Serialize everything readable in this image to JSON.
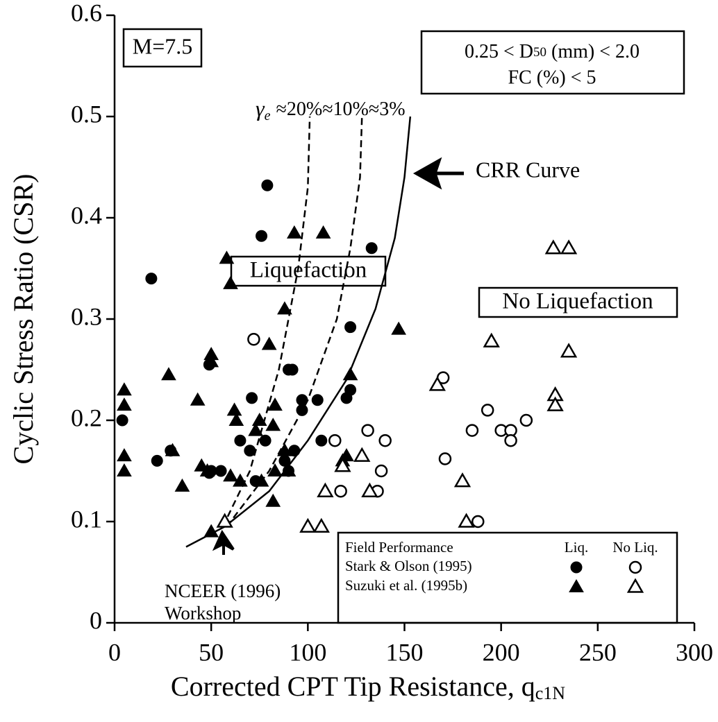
{
  "chart_data": {
    "type": "scatter",
    "xlabel": "Corrected CPT Tip Resistance, q",
    "xlabel_sub": "c1N",
    "ylabel": "Cyclic Stress Ratio (CSR)",
    "xlim": [
      0,
      300
    ],
    "xticks": [
      0,
      50,
      100,
      150,
      200,
      250,
      300
    ],
    "ylim": [
      0,
      0.6
    ],
    "yticks": [
      0,
      0.1,
      0.2,
      0.3,
      0.4,
      0.5,
      0.6
    ],
    "color": "#000000",
    "annotations": {
      "magnitude": "M=7.5",
      "grain_pre": "0.25 < D",
      "grain_sub": "50",
      "grain_post": " (mm) < 2.0",
      "fines": "FC (%) < 5",
      "strain_symbol": "γ",
      "strain_sub": "e",
      "strain_levels": "≈20%≈10%≈3%",
      "crr": "CRR Curve",
      "liq": "Liquefaction",
      "noliq": "No Liquefaction",
      "nceer1": "NCEER (1996)",
      "nceer2": "Workshop"
    },
    "legend": {
      "title": "Field Performance",
      "columns": [
        "Liq.",
        "No Liq."
      ]
    },
    "groups": [
      {
        "name": "Stark & Olson (1995)",
        "marker": "circle",
        "liq": {
          "x": [
            4,
            19,
            22,
            29,
            49,
            50,
            55,
            49,
            65,
            70,
            73,
            71,
            76,
            78,
            79,
            88,
            90,
            92,
            90,
            93,
            97,
            97,
            105,
            107,
            120,
            122,
            122,
            133
          ],
          "y": [
            0.2,
            0.34,
            0.16,
            0.17,
            0.148,
            0.15,
            0.15,
            0.255,
            0.18,
            0.17,
            0.14,
            0.222,
            0.382,
            0.18,
            0.432,
            0.16,
            0.25,
            0.25,
            0.15,
            0.17,
            0.22,
            0.21,
            0.22,
            0.18,
            0.222,
            0.23,
            0.292,
            0.37
          ]
        },
        "no_liq": {
          "x": [
            72,
            114,
            117,
            131,
            136,
            138,
            140,
            170,
            171,
            185,
            188,
            193,
            200,
            205,
            205,
            213
          ],
          "y": [
            0.28,
            0.18,
            0.13,
            0.19,
            0.13,
            0.15,
            0.18,
            0.242,
            0.162,
            0.19,
            0.1,
            0.21,
            0.19,
            0.19,
            0.18,
            0.2
          ]
        }
      },
      {
        "name": "Suzuki et al. (1995b)",
        "marker": "triangle",
        "liq": {
          "x": [
            5,
            5,
            5,
            5,
            28,
            30,
            35,
            43,
            45,
            50,
            50,
            48,
            50,
            58,
            60,
            60,
            62,
            63,
            65,
            73,
            75,
            76,
            80,
            83,
            82,
            82,
            83,
            88,
            88,
            90,
            93,
            108,
            118,
            120,
            122,
            147
          ],
          "y": [
            0.23,
            0.215,
            0.165,
            0.15,
            0.245,
            0.17,
            0.135,
            0.22,
            0.155,
            0.265,
            0.258,
            0.15,
            0.09,
            0.36,
            0.335,
            0.145,
            0.21,
            0.2,
            0.14,
            0.19,
            0.2,
            0.14,
            0.275,
            0.215,
            0.195,
            0.12,
            0.15,
            0.31,
            0.17,
            0.15,
            0.385,
            0.385,
            0.16,
            0.165,
            0.245,
            0.29
          ]
        },
        "no_liq": {
          "x": [
            57,
            100,
            107,
            109,
            118,
            128,
            132,
            167,
            180,
            182,
            195,
            227,
            235,
            228,
            228,
            235
          ],
          "y": [
            0.1,
            0.095,
            0.095,
            0.13,
            0.155,
            0.165,
            0.13,
            0.235,
            0.14,
            0.1,
            0.278,
            0.37,
            0.37,
            0.225,
            0.215,
            0.268
          ]
        }
      }
    ],
    "curves": [
      {
        "style": "solid",
        "x": [
          37,
          57,
          80,
          100,
          120,
          135,
          145,
          150,
          153
        ],
        "y": [
          0.075,
          0.095,
          0.13,
          0.18,
          0.24,
          0.31,
          0.38,
          0.44,
          0.5
        ]
      },
      {
        "style": "dashed",
        "x": [
          58,
          80,
          100,
          115,
          122,
          127,
          128
        ],
        "y": [
          0.095,
          0.15,
          0.22,
          0.3,
          0.37,
          0.44,
          0.5
        ]
      },
      {
        "style": "dashed",
        "x": [
          56,
          70,
          85,
          95,
          100,
          101
        ],
        "y": [
          0.095,
          0.15,
          0.25,
          0.35,
          0.43,
          0.5
        ]
      }
    ]
  }
}
